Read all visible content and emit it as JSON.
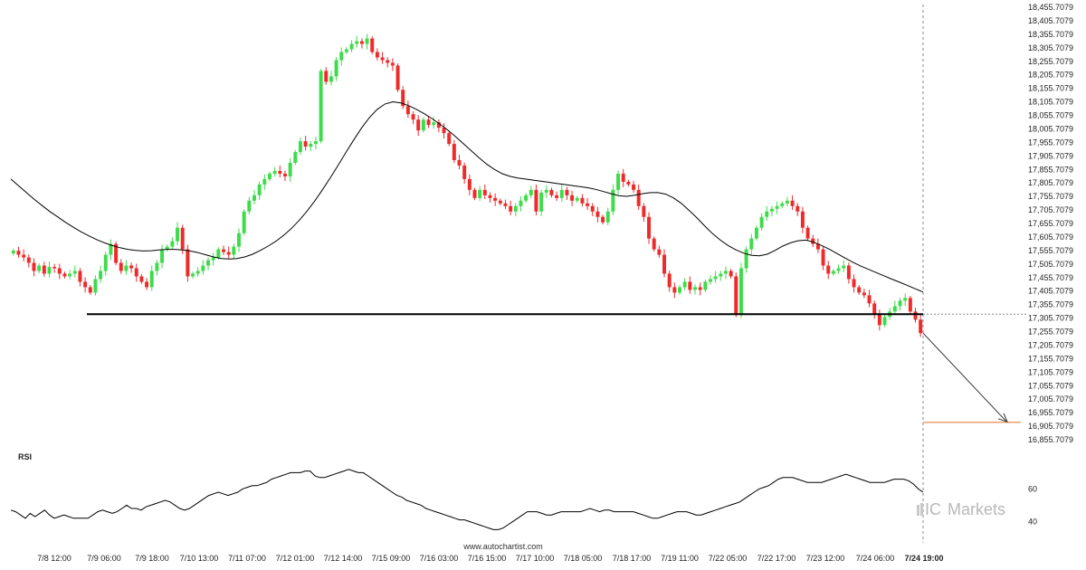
{
  "watermark": "www.autochartist.com",
  "brand": {
    "prefix": "IC",
    "name": "Markets"
  },
  "colors": {
    "up": "#3ddc4a",
    "down": "#ee2a2a",
    "line": "#000000",
    "target": "#e8a070",
    "grid": "#d8d8d8"
  },
  "chart_data": [
    {
      "type": "candlestick",
      "x_ticks": [
        "7/8 12:00",
        "7/9 06:00",
        "7/9 18:00",
        "7/10 13:00",
        "7/11 07:00",
        "7/12 01:00",
        "7/12 14:00",
        "7/15 09:00",
        "7/16 03:00",
        "7/16 15:00",
        "7/17 10:00",
        "7/18 05:00",
        "7/18 17:00",
        "7/19 11:00",
        "7/22 05:00",
        "7/22 17:00",
        "7/23 12:00",
        "7/24 06:00",
        "7/24 19:00"
      ],
      "y_ticks": [
        "18,455.7079",
        "18,405.7079",
        "18,355.7079",
        "18,305.7079",
        "18,255.7079",
        "18,205.7079",
        "18,155.7079",
        "18,105.7079",
        "18,055.7079",
        "18,005.7079",
        "17,955.7079",
        "17,905.7079",
        "17,855.7079",
        "17,805.7079",
        "17,755.7079",
        "17,705.7079",
        "17,655.7079",
        "17,605.7079",
        "17,555.7079",
        "17,505.7079",
        "17,455.7079",
        "17,405.7079",
        "17,355.7079",
        "17,305.7079",
        "17,255.7079",
        "17,205.7079",
        "17,155.7079",
        "17,105.7079",
        "17,055.7079",
        "17,005.7079",
        "16,955.7079",
        "16,905.7079",
        "16,855.7079"
      ],
      "ylim": [
        16855.7079,
        18455.7079
      ],
      "support_level": 17320,
      "projection": {
        "from": 17250,
        "to": 16920
      },
      "closes": [
        17555,
        17540,
        17530,
        17510,
        17480,
        17500,
        17470,
        17495,
        17490,
        17470,
        17460,
        17470,
        17480,
        17440,
        17420,
        17400,
        17450,
        17480,
        17540,
        17580,
        17510,
        17480,
        17500,
        17490,
        17460,
        17440,
        17420,
        17480,
        17510,
        17560,
        17570,
        17590,
        17640,
        17560,
        17460,
        17470,
        17480,
        17500,
        17520,
        17530,
        17560,
        17550,
        17540,
        17570,
        17620,
        17700,
        17740,
        17760,
        17800,
        17820,
        17840,
        17850,
        17840,
        17830,
        17880,
        17920,
        17960,
        17940,
        17950,
        17960,
        18220,
        18180,
        18200,
        18260,
        18290,
        18300,
        18320,
        18330,
        18320,
        18340,
        18290,
        18270,
        18260,
        18250,
        18240,
        18150,
        18090,
        18060,
        18040,
        18000,
        18040,
        18020,
        18030,
        18010,
        17990,
        17950,
        17890,
        17870,
        17820,
        17780,
        17750,
        17780,
        17760,
        17750,
        17740,
        17730,
        17720,
        17700,
        17720,
        17740,
        17760,
        17780,
        17700,
        17770,
        17780,
        17760,
        17750,
        17780,
        17760,
        17740,
        17750,
        17730,
        17720,
        17700,
        17680,
        17660,
        17700,
        17780,
        17840,
        17810,
        17800,
        17780,
        17720,
        17680,
        17600,
        17560,
        17540,
        17470,
        17420,
        17400,
        17420,
        17440,
        17410,
        17420,
        17410,
        17440,
        17450,
        17460,
        17470,
        17480,
        17460,
        17320,
        17490,
        17560,
        17600,
        17640,
        17680,
        17700,
        17710,
        17720,
        17730,
        17740,
        17720,
        17700,
        17640,
        17600,
        17580,
        17560,
        17500,
        17470,
        17480,
        17490,
        17500,
        17450,
        17420,
        17400,
        17390,
        17360,
        17320,
        17280,
        17310,
        17330,
        17350,
        17370,
        17380,
        17330,
        17300,
        17250
      ],
      "ma": [
        17820,
        17795,
        17770,
        17745,
        17722,
        17700,
        17680,
        17660,
        17642,
        17625,
        17610,
        17596,
        17584,
        17574,
        17566,
        17560,
        17556,
        17554,
        17555,
        17558,
        17560,
        17560,
        17558,
        17554,
        17548,
        17540,
        17532,
        17526,
        17524,
        17526,
        17532,
        17542,
        17556,
        17572,
        17590,
        17612,
        17638,
        17668,
        17702,
        17740,
        17782,
        17826,
        17872,
        17920,
        17966,
        18010,
        18048,
        18078,
        18098,
        18106,
        18102,
        18092,
        18078,
        18062,
        18044,
        18024,
        18002,
        17978,
        17952,
        17926,
        17900,
        17876,
        17856,
        17840,
        17830,
        17824,
        17820,
        17816,
        17812,
        17808,
        17804,
        17800,
        17796,
        17792,
        17788,
        17782,
        17774,
        17766,
        17758,
        17756,
        17760,
        17766,
        17770,
        17770,
        17764,
        17750,
        17730,
        17704,
        17676,
        17646,
        17618,
        17594,
        17574,
        17558,
        17546,
        17538,
        17536,
        17542,
        17556,
        17572,
        17584,
        17592,
        17594,
        17586,
        17574,
        17560,
        17544,
        17528,
        17512,
        17498,
        17486,
        17474,
        17462,
        17450,
        17438,
        17426,
        17414,
        17402
      ]
    },
    {
      "type": "line",
      "title": "RSI",
      "y_ticks": [
        "60",
        "40"
      ],
      "ylim": [
        28,
        78
      ],
      "values": [
        47,
        46,
        44,
        42,
        45,
        43,
        45,
        47,
        44,
        42,
        43,
        44,
        43,
        42,
        42,
        42,
        42,
        44,
        46,
        47,
        46,
        45,
        46,
        48,
        50,
        48,
        48,
        47,
        49,
        50,
        51,
        52,
        53,
        52,
        50,
        48,
        47,
        48,
        50,
        52,
        54,
        56,
        57,
        58,
        57,
        56,
        57,
        58,
        60,
        61,
        62,
        62,
        63,
        64,
        66,
        67,
        68,
        69,
        70,
        70,
        70,
        71,
        71,
        68,
        67,
        67,
        68,
        69,
        70,
        71,
        72,
        71,
        70,
        70,
        68,
        66,
        64,
        62,
        60,
        58,
        56,
        55,
        53,
        52,
        51,
        50,
        48,
        47,
        46,
        45,
        44,
        43,
        42,
        41,
        41,
        40,
        39,
        38,
        37,
        36,
        35,
        35,
        36,
        38,
        40,
        42,
        44,
        46,
        46,
        46,
        45,
        44,
        44,
        45,
        46,
        46,
        46,
        46,
        46,
        47,
        48,
        47,
        46,
        47,
        47,
        46,
        46,
        46,
        46,
        46,
        45,
        44,
        43,
        42,
        42,
        43,
        44,
        45,
        46,
        46,
        46,
        45,
        44,
        44,
        45,
        46,
        47,
        48,
        49,
        50,
        51,
        52,
        54,
        56,
        58,
        60,
        61,
        62,
        64,
        66,
        67,
        67,
        67,
        66,
        65,
        64,
        64,
        64,
        64,
        65,
        66,
        67,
        68,
        69,
        68,
        67,
        66,
        65,
        64,
        64,
        64,
        64,
        65,
        66,
        66,
        66,
        65,
        63,
        60,
        58
      ]
    }
  ]
}
